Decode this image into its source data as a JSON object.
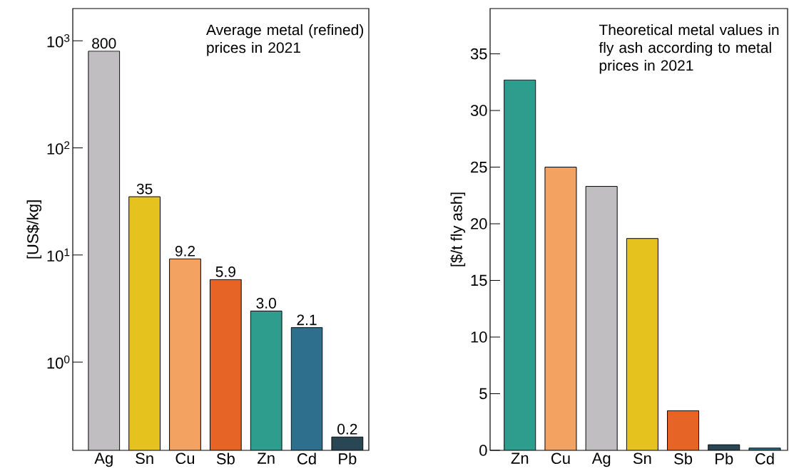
{
  "chart_data": [
    {
      "type": "bar",
      "title": "Average metal (refined) prices in 2021",
      "ylabel": "[US$/kg]",
      "categories": [
        "Ag",
        "Sn",
        "Cu",
        "Sb",
        "Zn",
        "Cd",
        "Pb"
      ],
      "values": [
        800,
        35,
        9.2,
        5.9,
        3.0,
        2.1,
        0.2
      ],
      "value_labels": [
        "800",
        "35",
        "9.2",
        "5.9",
        "3.0",
        "2.1",
        "0.2"
      ],
      "colors": [
        "#c0bec0",
        "#e6c21f",
        "#f4a261",
        "#e76427",
        "#2f9d8e",
        "#2e6f8e",
        "#284653"
      ],
      "log": true,
      "ylim": [
        0.15,
        2000
      ],
      "yticks": [
        {
          "value": 1,
          "label": "10$^{0}$"
        },
        {
          "value": 10,
          "label": "10$^{1}$"
        },
        {
          "value": 100,
          "label": "10$^{2}$"
        },
        {
          "value": 1000,
          "label": "10$^{3}$"
        }
      ]
    },
    {
      "type": "bar",
      "title": "Theoretical metal values in fly ash according to metal prices in 2021",
      "ylabel": "[$/t fly ash]",
      "categories": [
        "Zn",
        "Cu",
        "Ag",
        "Sn",
        "Sb",
        "Pb",
        "Cd"
      ],
      "values": [
        32.7,
        25.0,
        23.3,
        18.7,
        3.5,
        0.5,
        0.2
      ],
      "colors": [
        "#2f9d8e",
        "#f4a261",
        "#c0bec0",
        "#e6c21f",
        "#e76427",
        "#284653",
        "#2e6f8e"
      ],
      "ylim": [
        0,
        39
      ],
      "yticks": [
        0,
        5,
        10,
        15,
        20,
        25,
        30,
        35
      ]
    }
  ]
}
